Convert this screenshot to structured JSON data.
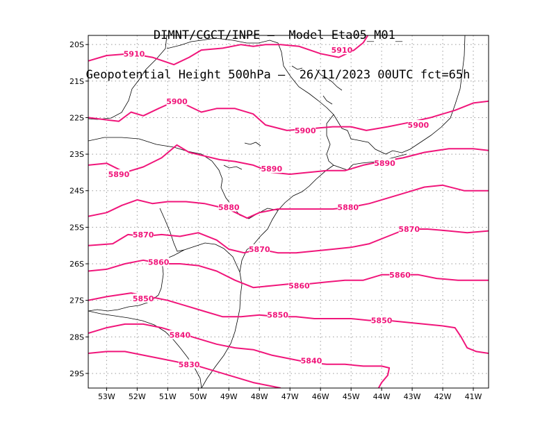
{
  "title": {
    "line1": "DIMNT/CGCT/INPE –  Model Eta05_M01_",
    "line2": "Geopotential Height 500hPa –  26/11/2023 00UTC fct=65h"
  },
  "colors": {
    "contour": "#f0157a",
    "label": "#f0157a",
    "coast": "#000000",
    "grid": "#999999"
  },
  "chart_data": {
    "type": "contour-map",
    "field": "Geopotential Height 500hPa",
    "x_range_lon": [
      -53.6,
      -40.5
    ],
    "y_range_lat": [
      -29.4,
      -19.75
    ],
    "x_ticks": [
      "53W",
      "52W",
      "51W",
      "50W",
      "49W",
      "48W",
      "47W",
      "46W",
      "45W",
      "44W",
      "43W",
      "42W",
      "41W"
    ],
    "y_ticks": [
      "20S",
      "21S",
      "22S",
      "23S",
      "24S",
      "25S",
      "26S",
      "27S",
      "28S",
      "29S"
    ],
    "grid": true,
    "contours": [
      {
        "level": "5910",
        "labels": [
          [
            -52.1,
            -20.25
          ],
          [
            -45.3,
            -20.15
          ]
        ],
        "points": [
          [
            -53.6,
            -20.45
          ],
          [
            -53.0,
            -20.3
          ],
          [
            -52.2,
            -20.25
          ],
          [
            -51.5,
            -20.35
          ],
          [
            -50.8,
            -20.55
          ],
          [
            -50.3,
            -20.35
          ],
          [
            -49.9,
            -20.15
          ],
          [
            -49.2,
            -20.1
          ],
          [
            -48.6,
            -20.0
          ],
          [
            -48.2,
            -20.05
          ],
          [
            -47.8,
            -20.0
          ],
          [
            -47.3,
            -20.0
          ],
          [
            -46.7,
            -20.05
          ],
          [
            -46.0,
            -20.25
          ],
          [
            -45.4,
            -20.35
          ],
          [
            -44.9,
            -20.15
          ],
          [
            -44.6,
            -19.95
          ],
          [
            -44.45,
            -19.75
          ]
        ]
      },
      {
        "level": "5900",
        "labels": [
          [
            -50.7,
            -21.55
          ],
          [
            -46.5,
            -22.35
          ],
          [
            -42.8,
            -22.2
          ]
        ],
        "points": [
          [
            -53.6,
            -22.0
          ],
          [
            -53.1,
            -22.05
          ],
          [
            -52.6,
            -22.1
          ],
          [
            -52.2,
            -21.85
          ],
          [
            -51.8,
            -21.95
          ],
          [
            -51.3,
            -21.75
          ],
          [
            -50.9,
            -21.6
          ],
          [
            -50.4,
            -21.65
          ],
          [
            -49.9,
            -21.85
          ],
          [
            -49.4,
            -21.75
          ],
          [
            -48.8,
            -21.75
          ],
          [
            -48.2,
            -21.9
          ],
          [
            -47.8,
            -22.2
          ],
          [
            -47.1,
            -22.35
          ],
          [
            -46.3,
            -22.3
          ],
          [
            -45.6,
            -22.25
          ],
          [
            -45.0,
            -22.25
          ],
          [
            -44.5,
            -22.35
          ],
          [
            -43.8,
            -22.25
          ],
          [
            -43.2,
            -22.15
          ],
          [
            -42.4,
            -22.0
          ],
          [
            -41.6,
            -21.8
          ],
          [
            -41.0,
            -21.6
          ],
          [
            -40.5,
            -21.55
          ]
        ]
      },
      {
        "level": "5890",
        "labels": [
          [
            -52.6,
            -23.55
          ],
          [
            -47.6,
            -23.4
          ],
          [
            -43.9,
            -23.25
          ]
        ],
        "points": [
          [
            -53.6,
            -23.3
          ],
          [
            -53.0,
            -23.25
          ],
          [
            -52.4,
            -23.5
          ],
          [
            -51.8,
            -23.35
          ],
          [
            -51.2,
            -23.1
          ],
          [
            -50.7,
            -22.75
          ],
          [
            -50.3,
            -22.95
          ],
          [
            -49.8,
            -23.05
          ],
          [
            -49.3,
            -23.15
          ],
          [
            -48.8,
            -23.2
          ],
          [
            -48.2,
            -23.3
          ],
          [
            -47.6,
            -23.5
          ],
          [
            -47.0,
            -23.55
          ],
          [
            -46.4,
            -23.5
          ],
          [
            -45.8,
            -23.45
          ],
          [
            -45.2,
            -23.45
          ],
          [
            -44.6,
            -23.3
          ],
          [
            -44.0,
            -23.2
          ],
          [
            -43.3,
            -23.1
          ],
          [
            -42.6,
            -22.95
          ],
          [
            -41.8,
            -22.85
          ],
          [
            -41.0,
            -22.85
          ],
          [
            -40.5,
            -22.9
          ]
        ]
      },
      {
        "level": "5880",
        "labels": [
          [
            -49.0,
            -24.45
          ],
          [
            -45.1,
            -24.45
          ]
        ],
        "points": [
          [
            -53.6,
            -24.7
          ],
          [
            -53.0,
            -24.6
          ],
          [
            -52.5,
            -24.4
          ],
          [
            -52.0,
            -24.25
          ],
          [
            -51.5,
            -24.35
          ],
          [
            -51.0,
            -24.3
          ],
          [
            -50.4,
            -24.3
          ],
          [
            -49.8,
            -24.35
          ],
          [
            -49.3,
            -24.45
          ],
          [
            -48.9,
            -24.55
          ],
          [
            -48.4,
            -24.75
          ],
          [
            -48.0,
            -24.6
          ],
          [
            -47.4,
            -24.5
          ],
          [
            -46.8,
            -24.5
          ],
          [
            -46.2,
            -24.5
          ],
          [
            -45.6,
            -24.5
          ],
          [
            -45.0,
            -24.45
          ],
          [
            -44.4,
            -24.35
          ],
          [
            -43.8,
            -24.2
          ],
          [
            -43.2,
            -24.05
          ],
          [
            -42.6,
            -23.9
          ],
          [
            -42.0,
            -23.85
          ],
          [
            -41.3,
            -24.0
          ],
          [
            -40.5,
            -24.0
          ]
        ]
      },
      {
        "level": "5870",
        "labels": [
          [
            -51.8,
            -25.2
          ],
          [
            -48.0,
            -25.6
          ],
          [
            -43.1,
            -25.05
          ]
        ],
        "points": [
          [
            -53.6,
            -25.5
          ],
          [
            -52.8,
            -25.45
          ],
          [
            -52.3,
            -25.2
          ],
          [
            -51.8,
            -25.25
          ],
          [
            -51.2,
            -25.2
          ],
          [
            -50.6,
            -25.25
          ],
          [
            -50.0,
            -25.15
          ],
          [
            -49.4,
            -25.35
          ],
          [
            -49.0,
            -25.6
          ],
          [
            -48.5,
            -25.7
          ],
          [
            -48.0,
            -25.6
          ],
          [
            -47.4,
            -25.7
          ],
          [
            -46.8,
            -25.7
          ],
          [
            -46.2,
            -25.65
          ],
          [
            -45.6,
            -25.6
          ],
          [
            -45.0,
            -25.55
          ],
          [
            -44.4,
            -25.45
          ],
          [
            -43.8,
            -25.25
          ],
          [
            -43.2,
            -25.05
          ],
          [
            -42.5,
            -25.05
          ],
          [
            -41.8,
            -25.1
          ],
          [
            -41.2,
            -25.15
          ],
          [
            -40.5,
            -25.1
          ]
        ]
      },
      {
        "level": "5860",
        "labels": [
          [
            -51.3,
            -25.95
          ],
          [
            -46.7,
            -26.6
          ],
          [
            -43.4,
            -26.3
          ]
        ],
        "points": [
          [
            -53.6,
            -26.2
          ],
          [
            -53.0,
            -26.15
          ],
          [
            -52.4,
            -26.0
          ],
          [
            -51.8,
            -25.9
          ],
          [
            -51.2,
            -26.0
          ],
          [
            -50.6,
            -26.0
          ],
          [
            -50.0,
            -26.05
          ],
          [
            -49.4,
            -26.2
          ],
          [
            -48.8,
            -26.45
          ],
          [
            -48.2,
            -26.65
          ],
          [
            -47.6,
            -26.6
          ],
          [
            -47.0,
            -26.55
          ],
          [
            -46.4,
            -26.55
          ],
          [
            -45.8,
            -26.5
          ],
          [
            -45.2,
            -26.45
          ],
          [
            -44.6,
            -26.45
          ],
          [
            -44.0,
            -26.3
          ],
          [
            -43.4,
            -26.3
          ],
          [
            -42.8,
            -26.3
          ],
          [
            -42.2,
            -26.4
          ],
          [
            -41.5,
            -26.45
          ],
          [
            -40.5,
            -26.45
          ]
        ]
      },
      {
        "level": "5850",
        "labels": [
          [
            -51.8,
            -26.95
          ],
          [
            -47.4,
            -27.4
          ],
          [
            -44.0,
            -27.55
          ]
        ],
        "points": [
          [
            -53.6,
            -27.0
          ],
          [
            -53.0,
            -26.9
          ],
          [
            -52.2,
            -26.8
          ],
          [
            -51.6,
            -26.9
          ],
          [
            -51.0,
            -27.0
          ],
          [
            -50.4,
            -27.15
          ],
          [
            -49.8,
            -27.3
          ],
          [
            -49.2,
            -27.45
          ],
          [
            -48.6,
            -27.45
          ],
          [
            -48.0,
            -27.4
          ],
          [
            -47.4,
            -27.45
          ],
          [
            -46.8,
            -27.45
          ],
          [
            -46.2,
            -27.5
          ],
          [
            -45.6,
            -27.5
          ],
          [
            -45.0,
            -27.5
          ],
          [
            -44.4,
            -27.55
          ],
          [
            -43.8,
            -27.55
          ],
          [
            -43.2,
            -27.6
          ],
          [
            -42.6,
            -27.65
          ],
          [
            -42.0,
            -27.7
          ],
          [
            -41.6,
            -27.75
          ],
          [
            -41.4,
            -28.0
          ],
          [
            -41.2,
            -28.3
          ],
          [
            -40.9,
            -28.4
          ],
          [
            -40.5,
            -28.45
          ]
        ]
      },
      {
        "level": "5840",
        "labels": [
          [
            -50.6,
            -27.95
          ],
          [
            -46.3,
            -28.65
          ]
        ],
        "points": [
          [
            -53.6,
            -27.9
          ],
          [
            -53.0,
            -27.75
          ],
          [
            -52.4,
            -27.65
          ],
          [
            -51.8,
            -27.65
          ],
          [
            -51.2,
            -27.75
          ],
          [
            -50.6,
            -27.9
          ],
          [
            -50.0,
            -28.05
          ],
          [
            -49.4,
            -28.2
          ],
          [
            -48.8,
            -28.3
          ],
          [
            -48.2,
            -28.35
          ],
          [
            -47.6,
            -28.5
          ],
          [
            -47.0,
            -28.6
          ],
          [
            -46.4,
            -28.7
          ],
          [
            -45.8,
            -28.75
          ],
          [
            -45.2,
            -28.75
          ],
          [
            -44.6,
            -28.8
          ],
          [
            -44.0,
            -28.8
          ],
          [
            -43.75,
            -28.85
          ],
          [
            -43.8,
            -29.05
          ],
          [
            -44.0,
            -29.25
          ],
          [
            -44.1,
            -29.4
          ]
        ]
      },
      {
        "level": "5830",
        "labels": [
          [
            -50.3,
            -28.75
          ]
        ],
        "points": [
          [
            -53.6,
            -28.45
          ],
          [
            -53.0,
            -28.4
          ],
          [
            -52.4,
            -28.4
          ],
          [
            -51.8,
            -28.5
          ],
          [
            -51.2,
            -28.6
          ],
          [
            -50.6,
            -28.7
          ],
          [
            -50.0,
            -28.8
          ],
          [
            -49.4,
            -28.95
          ],
          [
            -48.8,
            -29.1
          ],
          [
            -48.2,
            -29.25
          ],
          [
            -47.6,
            -29.35
          ],
          [
            -47.3,
            -29.4
          ]
        ]
      }
    ]
  }
}
